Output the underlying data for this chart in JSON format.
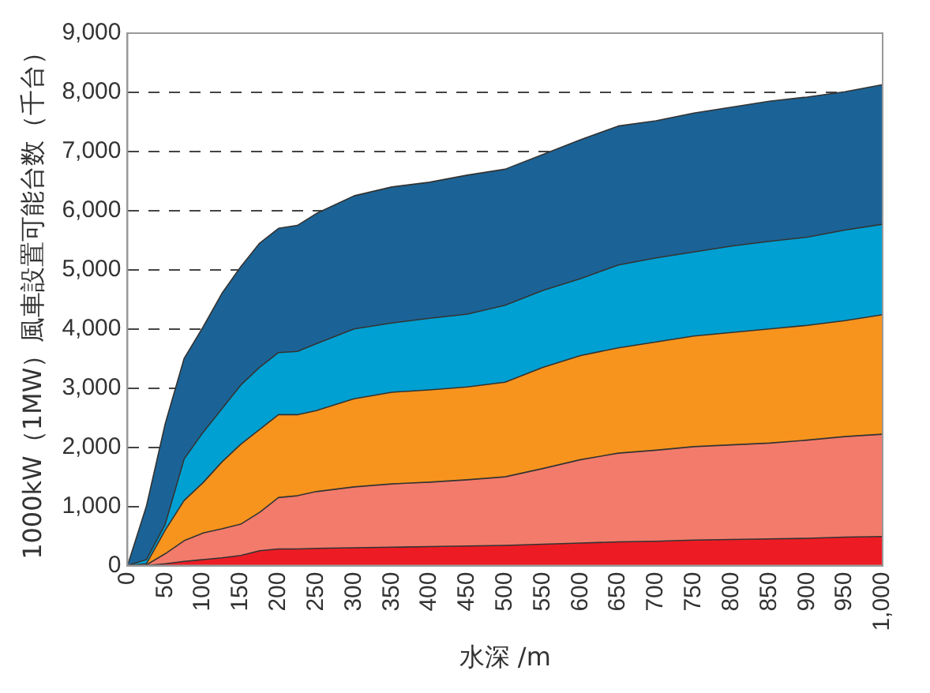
{
  "chart_data": {
    "type": "area",
    "stacked": true,
    "xlabel": "水深 /m",
    "ylabel": "1000kW（1MW）風車設置可能台数（千台）",
    "x": [
      0,
      25,
      50,
      75,
      100,
      125,
      150,
      175,
      200,
      225,
      250,
      300,
      350,
      400,
      450,
      500,
      550,
      600,
      650,
      700,
      750,
      800,
      850,
      900,
      950,
      1000
    ],
    "series": [
      {
        "color": "#ed1c24",
        "values": [
          0,
          0,
          30,
          70,
          100,
          130,
          170,
          250,
          280,
          280,
          290,
          300,
          310,
          320,
          330,
          340,
          360,
          380,
          400,
          410,
          430,
          440,
          450,
          460,
          480,
          490
        ]
      },
      {
        "color": "#f37b6b",
        "values": [
          0,
          10,
          170,
          350,
          450,
          490,
          530,
          650,
          870,
          900,
          960,
          1030,
          1070,
          1090,
          1120,
          1160,
          1280,
          1410,
          1500,
          1540,
          1580,
          1600,
          1620,
          1660,
          1700,
          1730
        ]
      },
      {
        "color": "#f7941d",
        "values": [
          0,
          20,
          400,
          680,
          850,
          1130,
          1350,
          1400,
          1400,
          1370,
          1370,
          1490,
          1550,
          1560,
          1570,
          1600,
          1710,
          1760,
          1780,
          1830,
          1870,
          1900,
          1930,
          1940,
          1960,
          2020
        ]
      },
      {
        "color": "#00a0d2",
        "values": [
          0,
          70,
          100,
          700,
          850,
          900,
          1000,
          1050,
          1050,
          1070,
          1130,
          1180,
          1170,
          1210,
          1230,
          1300,
          1300,
          1300,
          1400,
          1420,
          1420,
          1460,
          1480,
          1490,
          1530,
          1530
        ]
      },
      {
        "color": "#1b6396",
        "values": [
          0,
          900,
          1700,
          1700,
          1780,
          1950,
          2000,
          2100,
          2100,
          2130,
          2200,
          2250,
          2300,
          2300,
          2350,
          2300,
          2300,
          2350,
          2350,
          2320,
          2350,
          2350,
          2370,
          2370,
          2340,
          2360
        ]
      }
    ],
    "xlim": [
      0,
      1000
    ],
    "xticks": [
      0,
      50,
      100,
      150,
      200,
      250,
      300,
      350,
      400,
      450,
      500,
      550,
      600,
      650,
      700,
      750,
      800,
      850,
      900,
      950,
      {
        "value": 1000,
        "label": "1,000"
      }
    ],
    "ylim": [
      0,
      9000
    ],
    "yticks": [
      0,
      {
        "value": 1000,
        "label": "1,000"
      },
      {
        "value": 2000,
        "label": "2,000"
      },
      {
        "value": 3000,
        "label": "3,000"
      },
      {
        "value": 4000,
        "label": "4,000"
      },
      {
        "value": 5000,
        "label": "5,000"
      },
      {
        "value": 6000,
        "label": "6,000"
      },
      {
        "value": 7000,
        "label": "7,000"
      },
      {
        "value": 8000,
        "label": "8,000"
      },
      {
        "value": 9000,
        "label": "9,000"
      }
    ],
    "grid": "y",
    "legend": false
  }
}
